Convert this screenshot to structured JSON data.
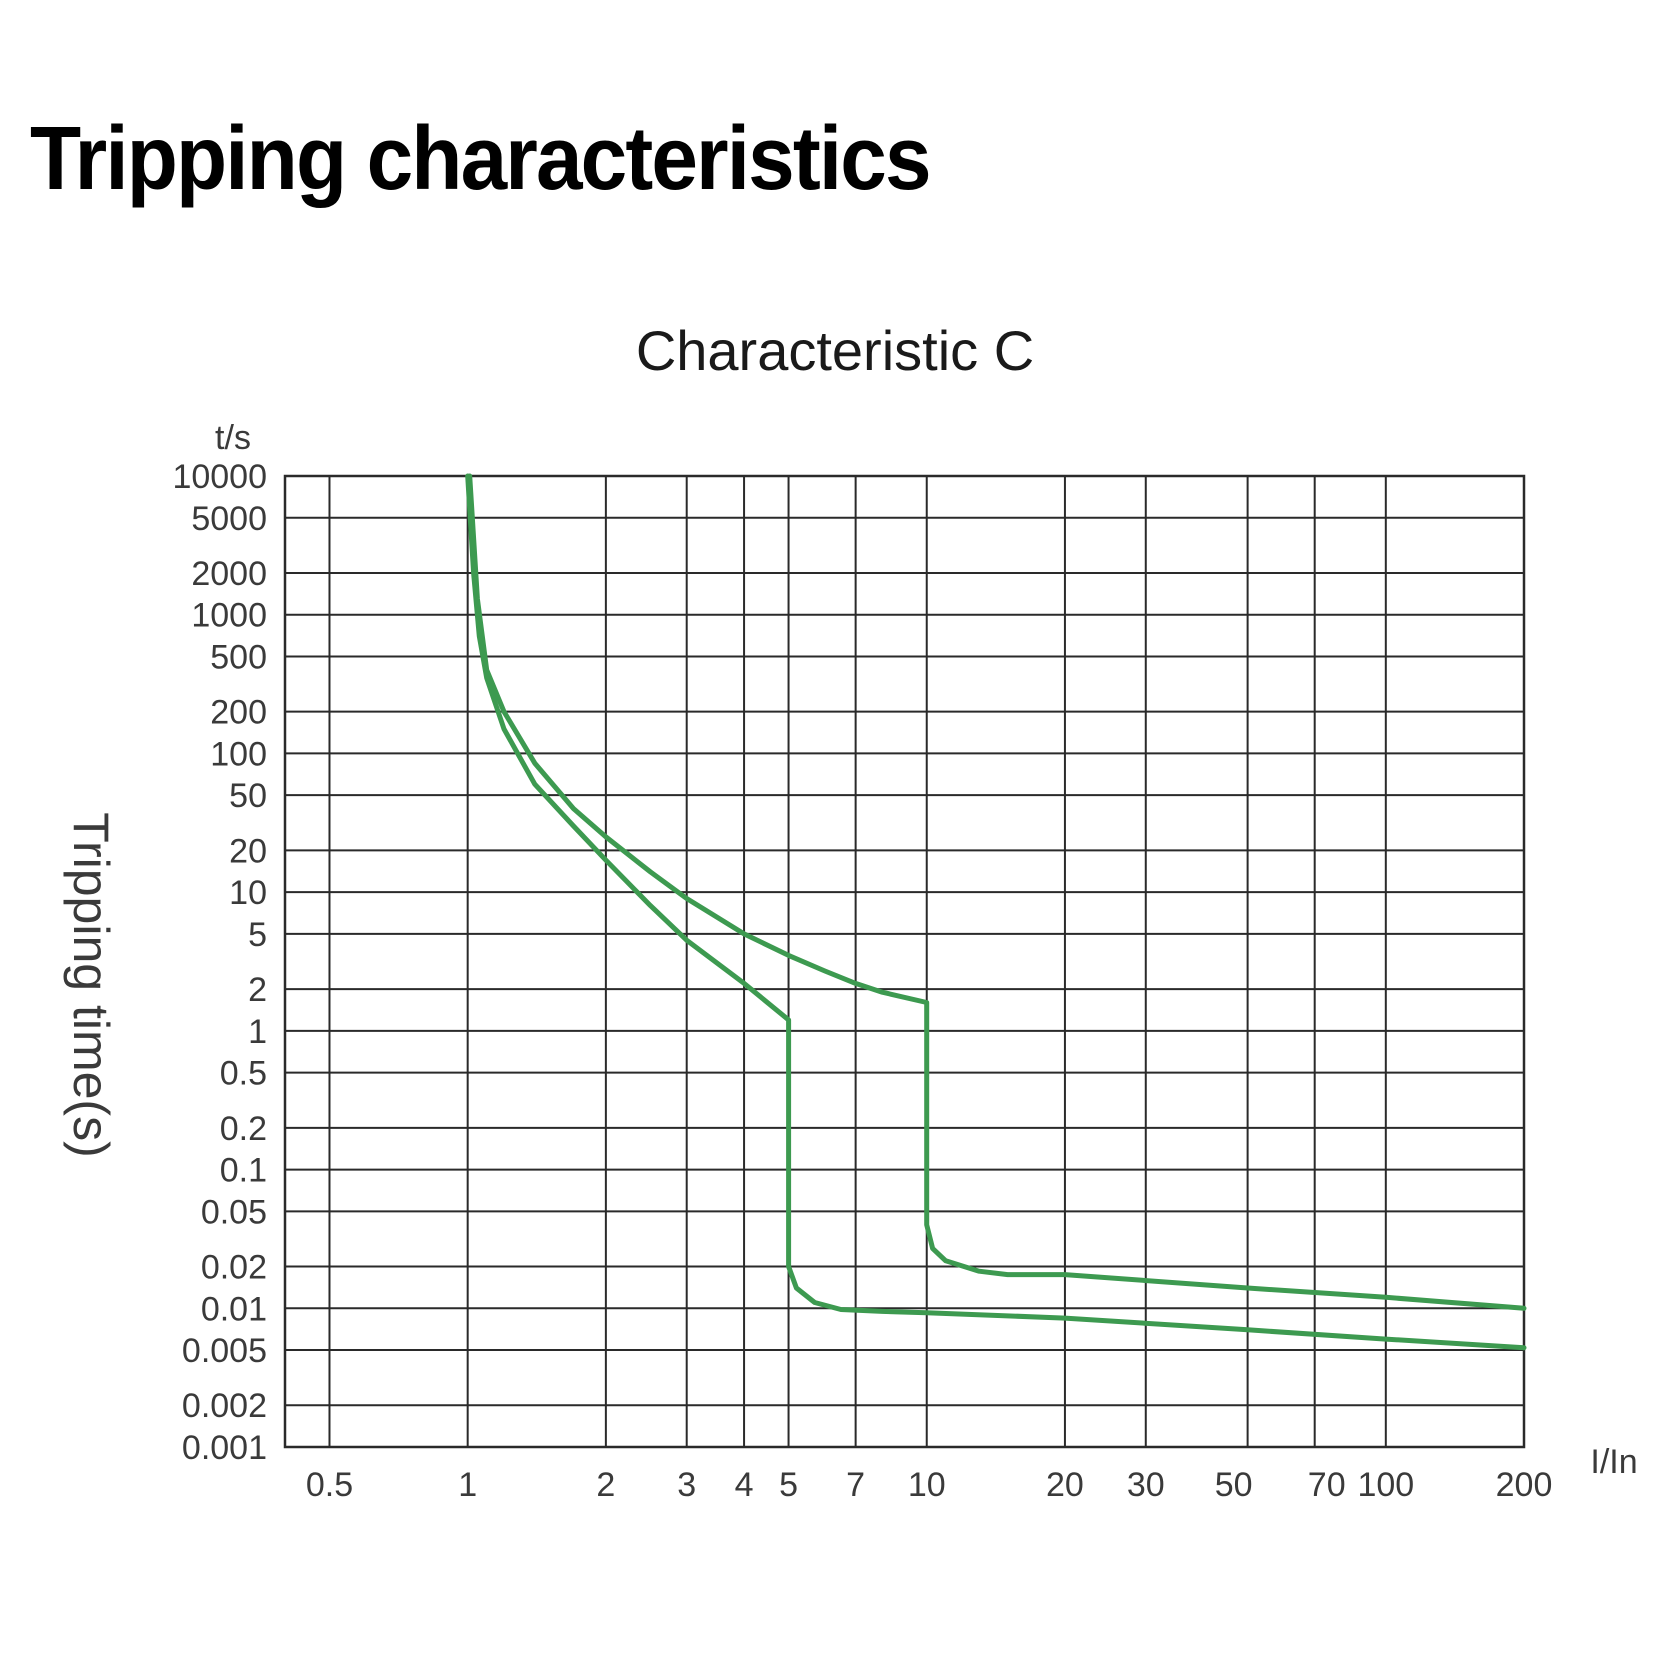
{
  "page": {
    "title": "Tripping characteristics"
  },
  "chart_data": {
    "type": "line",
    "title": "Characteristic C",
    "xlabel": "I/In",
    "ylabel": "Tripping time(s)",
    "y_unit_label": "t/s",
    "x_scale": "log",
    "y_scale": "log",
    "xlim": [
      0.4,
      200
    ],
    "ylim": [
      0.001,
      10000
    ],
    "grid": true,
    "line_color": "#3d9a50",
    "x_ticks": [
      {
        "value": 0.5,
        "label": "0.5"
      },
      {
        "value": 1,
        "label": "1"
      },
      {
        "value": 2,
        "label": "2"
      },
      {
        "value": 3,
        "label": "3"
      },
      {
        "value": 4,
        "label": "4"
      },
      {
        "value": 5,
        "label": "5"
      },
      {
        "value": 7,
        "label": "7"
      },
      {
        "value": 10,
        "label": "10"
      },
      {
        "value": 20,
        "label": "20"
      },
      {
        "value": 30,
        "label": "30"
      },
      {
        "value": 50,
        "label": "50"
      },
      {
        "value": 70,
        "label": "70"
      },
      {
        "value": 100,
        "label": "100"
      },
      {
        "value": 200,
        "label": "200"
      }
    ],
    "y_ticks": [
      {
        "value": 10000,
        "label": "10000"
      },
      {
        "value": 5000,
        "label": "5000"
      },
      {
        "value": 2000,
        "label": "2000"
      },
      {
        "value": 1000,
        "label": "1000"
      },
      {
        "value": 500,
        "label": "500"
      },
      {
        "value": 200,
        "label": "200"
      },
      {
        "value": 100,
        "label": "100"
      },
      {
        "value": 50,
        "label": "50"
      },
      {
        "value": 20,
        "label": "20"
      },
      {
        "value": 10,
        "label": "10"
      },
      {
        "value": 5,
        "label": "5"
      },
      {
        "value": 2,
        "label": "2"
      },
      {
        "value": 1,
        "label": "1"
      },
      {
        "value": 0.5,
        "label": "0.5"
      },
      {
        "value": 0.2,
        "label": "0.2"
      },
      {
        "value": 0.1,
        "label": "0.1"
      },
      {
        "value": 0.05,
        "label": "0.05"
      },
      {
        "value": 0.02,
        "label": "0.02"
      },
      {
        "value": 0.01,
        "label": "0.01"
      },
      {
        "value": 0.005,
        "label": "0.005"
      },
      {
        "value": 0.002,
        "label": "0.002"
      },
      {
        "value": 0.001,
        "label": "0.001"
      }
    ],
    "series": [
      {
        "points": [
          [
            1.01,
            10000
          ],
          [
            1.05,
            1300
          ],
          [
            1.1,
            400
          ],
          [
            1.2,
            200
          ],
          [
            1.4,
            85
          ],
          [
            1.7,
            40
          ],
          [
            2,
            25
          ],
          [
            2.5,
            14
          ],
          [
            3,
            9
          ],
          [
            4,
            5
          ],
          [
            5,
            3.5
          ],
          [
            6,
            2.7
          ],
          [
            7,
            2.2
          ],
          [
            8,
            1.9
          ],
          [
            10,
            1.6
          ],
          [
            10,
            0.04
          ],
          [
            10.3,
            0.027
          ],
          [
            11,
            0.022
          ],
          [
            13,
            0.0185
          ],
          [
            15,
            0.0175
          ],
          [
            20,
            0.0175
          ],
          [
            50,
            0.014
          ],
          [
            100,
            0.012
          ],
          [
            200,
            0.01
          ]
        ]
      },
      {
        "points": [
          [
            1.0,
            10000
          ],
          [
            1.03,
            2000
          ],
          [
            1.06,
            700
          ],
          [
            1.1,
            350
          ],
          [
            1.2,
            150
          ],
          [
            1.4,
            60
          ],
          [
            1.7,
            30
          ],
          [
            2,
            17
          ],
          [
            2.5,
            8
          ],
          [
            3,
            4.5
          ],
          [
            4,
            2.2
          ],
          [
            5,
            1.2
          ],
          [
            5,
            0.02
          ],
          [
            5.2,
            0.014
          ],
          [
            5.7,
            0.011
          ],
          [
            6.5,
            0.0098
          ],
          [
            8,
            0.0095
          ],
          [
            10,
            0.0093
          ],
          [
            20,
            0.0085
          ],
          [
            50,
            0.007
          ],
          [
            100,
            0.006
          ],
          [
            200,
            0.0052
          ]
        ]
      }
    ]
  }
}
